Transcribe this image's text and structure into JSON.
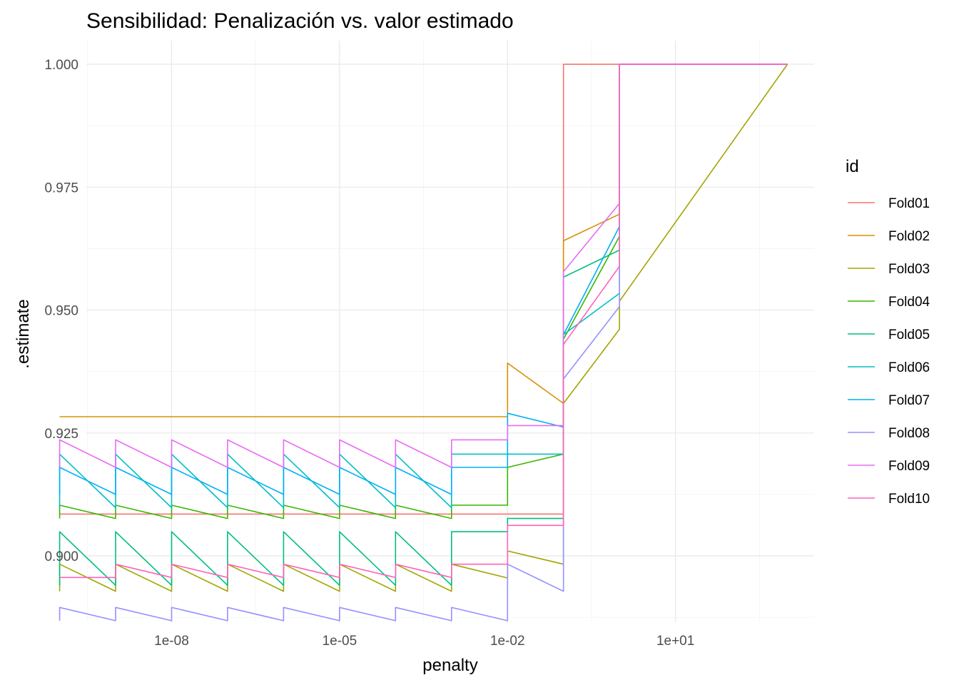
{
  "chart_data": {
    "type": "line",
    "title": "Sensibilidad: Penalización vs. valor estimado",
    "xlabel": "penalty",
    "ylabel": ".estimate",
    "x_scale": "log10",
    "xlim": [
      3e-10,
      3000.0
    ],
    "ylim": [
      0.8865,
      1.0048
    ],
    "x_ticks": [
      {
        "value": 1e-08,
        "label": "1e-08"
      },
      {
        "value": 1e-05,
        "label": "1e-05"
      },
      {
        "value": 0.01,
        "label": "1e-02"
      },
      {
        "value": 10,
        "label": "1e+01"
      }
    ],
    "y_ticks": [
      {
        "value": 0.9,
        "label": "0.900"
      },
      {
        "value": 0.925,
        "label": "0.925"
      },
      {
        "value": 0.95,
        "label": "0.950"
      },
      {
        "value": 0.975,
        "label": "0.975"
      },
      {
        "value": 1.0,
        "label": "1.000"
      }
    ],
    "grid": true,
    "legend": {
      "title": "id",
      "position": "right"
    },
    "x": [
      1e-10,
      1e-09,
      1e-08,
      1e-07,
      1e-06,
      1e-05,
      0.0001,
      0.001,
      0.01,
      0.1,
      1,
      1000
    ],
    "series": [
      {
        "name": "Fold01",
        "color": "#F8766D",
        "pairs": [
          [
            0.9085,
            0.9085
          ],
          [
            0.9085,
            0.9085
          ],
          [
            0.9085,
            0.9085
          ],
          [
            0.9085,
            0.9085
          ],
          [
            0.9085,
            0.9085
          ],
          [
            0.9085,
            0.9085
          ],
          [
            0.9085,
            0.9085
          ],
          [
            0.9085,
            0.9085
          ],
          [
            0.9085,
            0.9085
          ],
          [
            0.9085,
            1.0
          ],
          [
            1.0,
            1.0
          ],
          [
            1.0,
            1.0
          ]
        ]
      },
      {
        "name": "Fold02",
        "color": "#D89000",
        "pairs": [
          [
            0.9283,
            0.9283
          ],
          [
            0.9283,
            0.9283
          ],
          [
            0.9283,
            0.9283
          ],
          [
            0.9283,
            0.9283
          ],
          [
            0.9283,
            0.9283
          ],
          [
            0.9283,
            0.9283
          ],
          [
            0.9283,
            0.9283
          ],
          [
            0.9283,
            0.9283
          ],
          [
            0.9283,
            0.9392
          ],
          [
            0.931,
            0.9641
          ],
          [
            0.9695,
            1.0
          ],
          [
            1.0,
            1.0
          ]
        ]
      },
      {
        "name": "Fold03",
        "color": "#A3A500",
        "pairs": [
          [
            0.8928,
            0.8983
          ],
          [
            0.8928,
            0.8983
          ],
          [
            0.8928,
            0.8983
          ],
          [
            0.8928,
            0.8983
          ],
          [
            0.8928,
            0.8983
          ],
          [
            0.8928,
            0.8983
          ],
          [
            0.8928,
            0.8983
          ],
          [
            0.8928,
            0.8983
          ],
          [
            0.8955,
            0.901
          ],
          [
            0.8983,
            0.931
          ],
          [
            0.9461,
            0.9518
          ],
          [
            1.0,
            1.0
          ]
        ]
      },
      {
        "name": "Fold04",
        "color": "#39B600",
        "pairs": [
          [
            0.9076,
            0.9103
          ],
          [
            0.9076,
            0.9103
          ],
          [
            0.9076,
            0.9103
          ],
          [
            0.9076,
            0.9103
          ],
          [
            0.9076,
            0.9103
          ],
          [
            0.9076,
            0.9103
          ],
          [
            0.9076,
            0.9103
          ],
          [
            0.9076,
            0.9103
          ],
          [
            0.9103,
            0.918
          ],
          [
            0.9207,
            0.9441
          ],
          [
            0.965,
            1.0
          ],
          [
            1.0,
            1.0
          ]
        ]
      },
      {
        "name": "Fold05",
        "color": "#00BF7D",
        "pairs": [
          [
            0.894,
            0.9049
          ],
          [
            0.894,
            0.9049
          ],
          [
            0.894,
            0.9049
          ],
          [
            0.894,
            0.9049
          ],
          [
            0.894,
            0.9049
          ],
          [
            0.894,
            0.9049
          ],
          [
            0.894,
            0.9049
          ],
          [
            0.894,
            0.9049
          ],
          [
            0.9049,
            0.9076
          ],
          [
            0.9076,
            0.9567
          ],
          [
            0.9622,
            1.0
          ],
          [
            1.0,
            1.0
          ]
        ]
      },
      {
        "name": "Fold06",
        "color": "#00BFC4",
        "pairs": [
          [
            0.9098,
            0.9207
          ],
          [
            0.9098,
            0.9207
          ],
          [
            0.9098,
            0.9207
          ],
          [
            0.9098,
            0.9207
          ],
          [
            0.9098,
            0.9207
          ],
          [
            0.9098,
            0.9207
          ],
          [
            0.9098,
            0.9207
          ],
          [
            0.9098,
            0.9207
          ],
          [
            0.9207,
            0.9207
          ],
          [
            0.9207,
            0.945
          ],
          [
            0.9534,
            1.0
          ],
          [
            1.0,
            1.0
          ]
        ]
      },
      {
        "name": "Fold07",
        "color": "#00B0F6",
        "pairs": [
          [
            0.9125,
            0.918
          ],
          [
            0.9125,
            0.918
          ],
          [
            0.9125,
            0.918
          ],
          [
            0.9125,
            0.918
          ],
          [
            0.9125,
            0.918
          ],
          [
            0.9125,
            0.918
          ],
          [
            0.9125,
            0.918
          ],
          [
            0.9125,
            0.918
          ],
          [
            0.918,
            0.929
          ],
          [
            0.9262,
            0.945
          ],
          [
            0.967,
            1.0
          ],
          [
            1.0,
            1.0
          ]
        ]
      },
      {
        "name": "Fold08",
        "color": "#9590FF",
        "pairs": [
          [
            0.8868,
            0.8895
          ],
          [
            0.8868,
            0.8895
          ],
          [
            0.8868,
            0.8895
          ],
          [
            0.8868,
            0.8895
          ],
          [
            0.8868,
            0.8895
          ],
          [
            0.8868,
            0.8895
          ],
          [
            0.8868,
            0.8895
          ],
          [
            0.8868,
            0.8895
          ],
          [
            0.8868,
            0.8983
          ],
          [
            0.8928,
            0.936
          ],
          [
            0.9507,
            1.0
          ],
          [
            1.0,
            1.0
          ]
        ]
      },
      {
        "name": "Fold09",
        "color": "#E76BF3",
        "pairs": [
          [
            0.918,
            0.9236
          ],
          [
            0.918,
            0.9236
          ],
          [
            0.918,
            0.9236
          ],
          [
            0.918,
            0.9236
          ],
          [
            0.918,
            0.9236
          ],
          [
            0.918,
            0.9236
          ],
          [
            0.918,
            0.9236
          ],
          [
            0.918,
            0.9236
          ],
          [
            0.9236,
            0.9265
          ],
          [
            0.9265,
            0.9578
          ],
          [
            0.9717,
            1.0
          ],
          [
            1.0,
            1.0
          ]
        ]
      },
      {
        "name": "Fold10",
        "color": "#FF62BC",
        "pairs": [
          [
            0.8956,
            0.8956
          ],
          [
            0.8956,
            0.8983
          ],
          [
            0.8956,
            0.8983
          ],
          [
            0.8956,
            0.8983
          ],
          [
            0.8956,
            0.8983
          ],
          [
            0.8956,
            0.8983
          ],
          [
            0.8956,
            0.8983
          ],
          [
            0.8956,
            0.8983
          ],
          [
            0.8983,
            0.9062
          ],
          [
            0.9062,
            0.943
          ],
          [
            0.9589,
            1.0
          ],
          [
            1.0,
            1.0
          ]
        ]
      }
    ]
  }
}
